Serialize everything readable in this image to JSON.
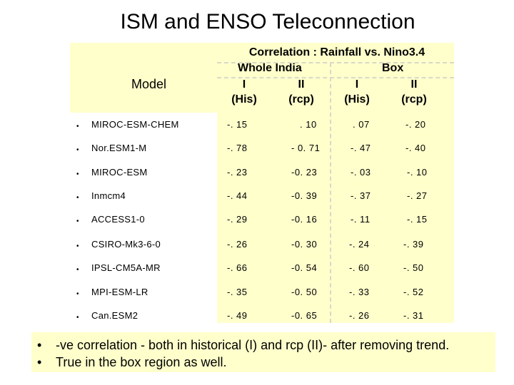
{
  "title": "ISM and ENSO Teleconnection",
  "table": {
    "model_header": "Model",
    "corr_header": "Correlation : Rainfall vs. Nino3.4",
    "region_india": "Whole India",
    "region_box": "Box",
    "col_labels": [
      {
        "roman": "I",
        "period": "(His)"
      },
      {
        "roman": "II",
        "period": "(rcp)"
      },
      {
        "roman": "I",
        "period": "(His)"
      },
      {
        "roman": "II",
        "period": "(rcp)"
      }
    ],
    "bullet": "•",
    "rows": [
      {
        "model": "MIROC-ESM-CHEM",
        "values": [
          "-. 15",
          ". 10",
          ". 07",
          "-. 20"
        ]
      },
      {
        "model": "Nor.ESM1-M",
        "values": [
          "-. 78",
          "- 0. 71",
          "-. 47",
          "-. 40"
        ]
      },
      {
        "model": "MIROC-ESM",
        "values": [
          "-. 23",
          "-0. 23",
          "-. 03",
          "-. 10"
        ]
      },
      {
        "model": "Inmcm4",
        "values": [
          "-. 44",
          "-0. 39",
          "-. 37",
          "-. 27"
        ]
      },
      {
        "model": "ACCESS1-0",
        "values": [
          "-. 29",
          "-0. 16",
          "-. 11",
          "-. 15"
        ]
      },
      {
        "model": "CSIRO-Mk3-6-0",
        "values": [
          "-. 26",
          "-0. 30",
          "-. 24",
          "-. 39"
        ]
      },
      {
        "model": "IPSL-CM5A-MR",
        "values": [
          "-. 66",
          "-0. 54",
          "-. 60",
          "-. 50"
        ]
      },
      {
        "model": "MPI-ESM-LR",
        "values": [
          "-. 35",
          "-0. 50",
          "-. 33",
          "-. 52"
        ]
      },
      {
        "model": "Can.ESM2",
        "values": [
          "-. 49",
          "-0. 65",
          "-. 26",
          "-. 31"
        ]
      }
    ]
  },
  "footer": {
    "bullet": "•",
    "lines": [
      "-ve correlation - both in historical (I) and rcp (II)- after removing trend.",
      "True in  the box region as well."
    ]
  }
}
